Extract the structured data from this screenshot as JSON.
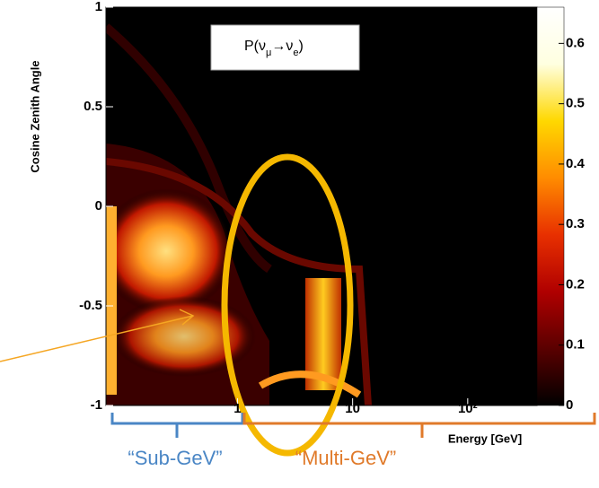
{
  "chart_data": {
    "type": "heatmap",
    "title_parts": [
      "P(ν",
      "μ",
      "→ν",
      "e",
      ")"
    ],
    "ylabel": "Cosine Zenith Angle",
    "xlabel": "Energy [GeV]",
    "xscale": "log",
    "xlim": [
      0.072,
      400
    ],
    "ylim": [
      -1,
      1
    ],
    "xticks": [
      1,
      10,
      {
        "value": 100,
        "label": "10²"
      }
    ],
    "yticks": [
      -1,
      -0.5,
      0,
      0.5,
      1
    ],
    "colorbar": {
      "zlim": [
        0,
        0.66
      ],
      "ticks": [
        0,
        0.1,
        0.2,
        0.3,
        0.4,
        0.5,
        0.6
      ],
      "colormap": [
        "#000000",
        "#5a0000",
        "#b00000",
        "#e83000",
        "#ff8c00",
        "#ffd800",
        "#ffffe0",
        "#ffffff"
      ]
    },
    "annotations": {
      "sub_gev": "“Sub-GeV”",
      "multi_gev": "“Multi-GeV”"
    }
  }
}
